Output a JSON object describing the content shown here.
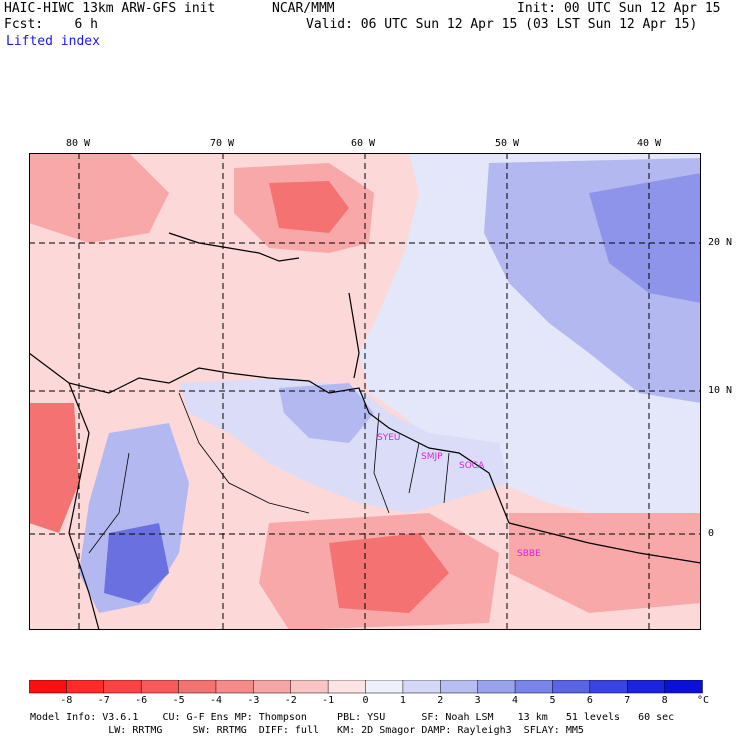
{
  "header": {
    "model": "HAIC-HIWC 13km ARW-GFS init",
    "org": "NCAR/MMM",
    "init": "Init: 00 UTC Sun 12 Apr 15",
    "fcst": "Fcst:    6 h",
    "valid": "Valid: 06 UTC Sun 12 Apr 15 (03 LST Sun 12 Apr 15)",
    "field": "Lifted index"
  },
  "map": {
    "lon_labels": [
      "80 W",
      "70 W",
      "60 W",
      "50 W",
      "40 W"
    ],
    "lat_labels": [
      "20 N",
      "10 N",
      "0"
    ],
    "stations": [
      "SYEU",
      "SMJP",
      "SOCA",
      "SBBE"
    ],
    "colors": {
      "neg_strong": "#f04848",
      "neg": "#f8a8a8",
      "neg_light": "#fcd8d8",
      "pos_light": "#e4e6fa",
      "pos": "#b4b8f0",
      "pos_strong": "#6a70e0",
      "station": "#e020e0"
    }
  },
  "colorbar": {
    "unit": "°C",
    "tick_labels": [
      "-8",
      "-7",
      "-6",
      "-5",
      "-4",
      "-3",
      "-2",
      "-1",
      "0",
      "1",
      "2",
      "3",
      "4",
      "5",
      "6",
      "7",
      "8"
    ],
    "colors": [
      "#ff1010",
      "#ff2a2a",
      "#fa4444",
      "#f65a5a",
      "#f47272",
      "#f48a8a",
      "#f6a6a6",
      "#fac4c4",
      "#fde4e4",
      "#eef0fc",
      "#d4d8f6",
      "#b8bef2",
      "#9aa2ee",
      "#7a84ea",
      "#5a64e6",
      "#3a44e4",
      "#1c24e0",
      "#0a10d8"
    ]
  },
  "footer": {
    "line1": "Model Info: V3.6.1    CU: G-F Ens MP: Thompson     PBL: YSU      SF: Noah LSM    13 km   51 levels   60 sec",
    "line2": "             LW: RRTMG     SW: RRTMG  DIFF: full   KM: 2D Smagor DAMP: Rayleigh3  SFLAY: MM5"
  }
}
